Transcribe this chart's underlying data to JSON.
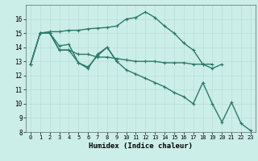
{
  "xlabel": "Humidex (Indice chaleur)",
  "bg_color": "#cceee8",
  "grid_color": "#b8ddd6",
  "line_color": "#2a7a6a",
  "xlim": [
    -0.5,
    23.5
  ],
  "ylim": [
    8,
    17
  ],
  "yticks": [
    8,
    9,
    10,
    11,
    12,
    13,
    14,
    15,
    16
  ],
  "xticks": [
    0,
    1,
    2,
    3,
    4,
    5,
    6,
    7,
    8,
    9,
    10,
    11,
    12,
    13,
    14,
    15,
    16,
    17,
    18,
    19,
    20,
    21,
    22,
    23
  ],
  "lines": [
    {
      "x": [
        0,
        1,
        2,
        3,
        4,
        5,
        6,
        7,
        8,
        9,
        10,
        11,
        12,
        13,
        14,
        15,
        16,
        17,
        18,
        19,
        20,
        21,
        22,
        23
      ],
      "y": [
        12.8,
        15.0,
        15.1,
        15.1,
        15.2,
        15.2,
        15.3,
        15.35,
        15.4,
        15.5,
        16.0,
        16.1,
        16.5,
        16.1,
        15.5,
        15.0,
        14.3,
        13.8,
        12.8,
        12.5,
        12.8,
        null,
        null,
        null
      ]
    },
    {
      "x": [
        0,
        1,
        2,
        3,
        4,
        5,
        6,
        7,
        8,
        9,
        10,
        11,
        12,
        13,
        14,
        15,
        16,
        17,
        18,
        19
      ],
      "y": [
        12.8,
        15.0,
        15.0,
        13.8,
        13.8,
        13.5,
        13.5,
        13.3,
        13.3,
        13.2,
        13.1,
        13.0,
        13.0,
        13.0,
        12.9,
        12.9,
        12.9,
        12.8,
        12.8,
        12.8
      ]
    },
    {
      "x": [
        0,
        1,
        2,
        3,
        4,
        5,
        6,
        7,
        8,
        9,
        10,
        11,
        12,
        13,
        14,
        15,
        16,
        17,
        18,
        19,
        20,
        21,
        22,
        23
      ],
      "y": [
        12.8,
        15.0,
        15.0,
        13.8,
        13.8,
        12.9,
        12.6,
        13.4,
        14.0,
        13.0,
        12.4,
        12.1,
        11.8,
        11.5,
        11.2,
        10.8,
        10.5,
        10.0,
        11.5,
        10.0,
        8.7,
        10.1,
        8.6,
        8.1
      ]
    },
    {
      "x": [
        2,
        3,
        4,
        5,
        6,
        7,
        8,
        9
      ],
      "y": [
        15.0,
        14.1,
        14.2,
        12.9,
        12.5,
        13.5,
        14.0,
        13.0
      ]
    }
  ]
}
